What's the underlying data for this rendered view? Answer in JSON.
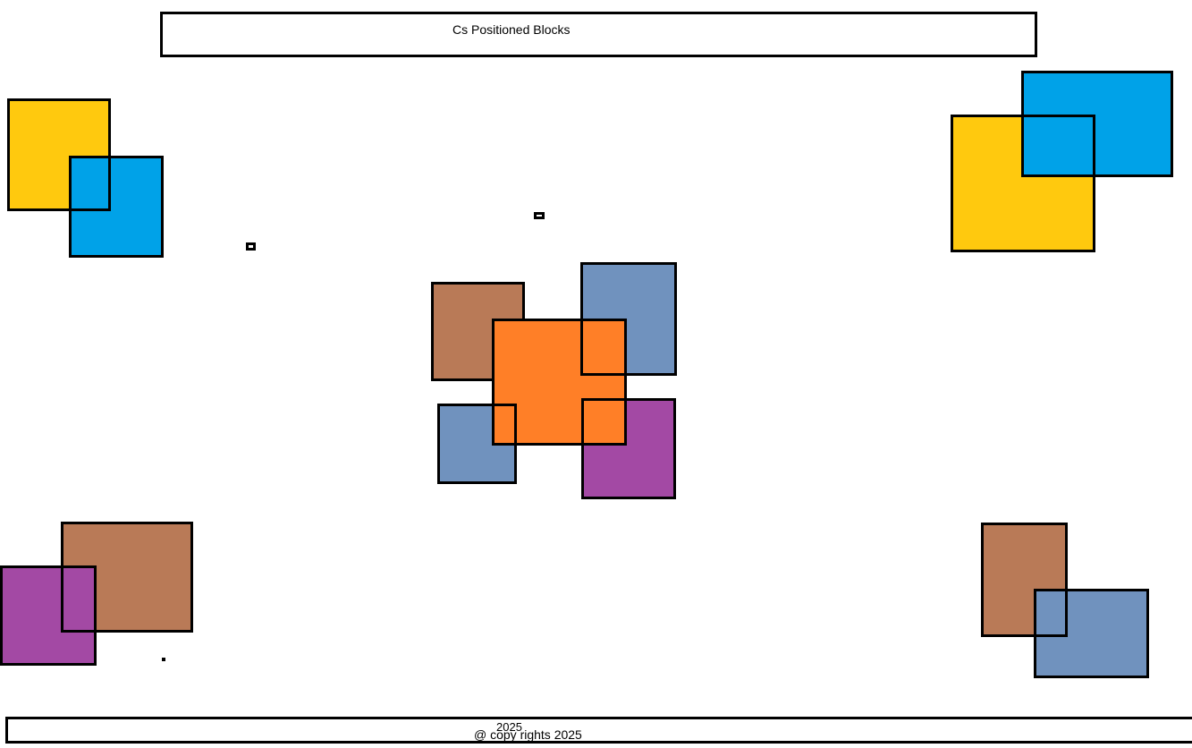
{
  "header": {
    "title": "Cs Positioned Blocks"
  },
  "footer": {
    "year": "2025",
    "copyright": "@ copy rights 2025"
  },
  "colors": {
    "yellow": "#ffc90e",
    "blue": "#00a2e8",
    "brown": "#b97a57",
    "steel": "#7092be",
    "orange": "#ff7f27",
    "purple": "#a349a4",
    "border": "#000000"
  }
}
